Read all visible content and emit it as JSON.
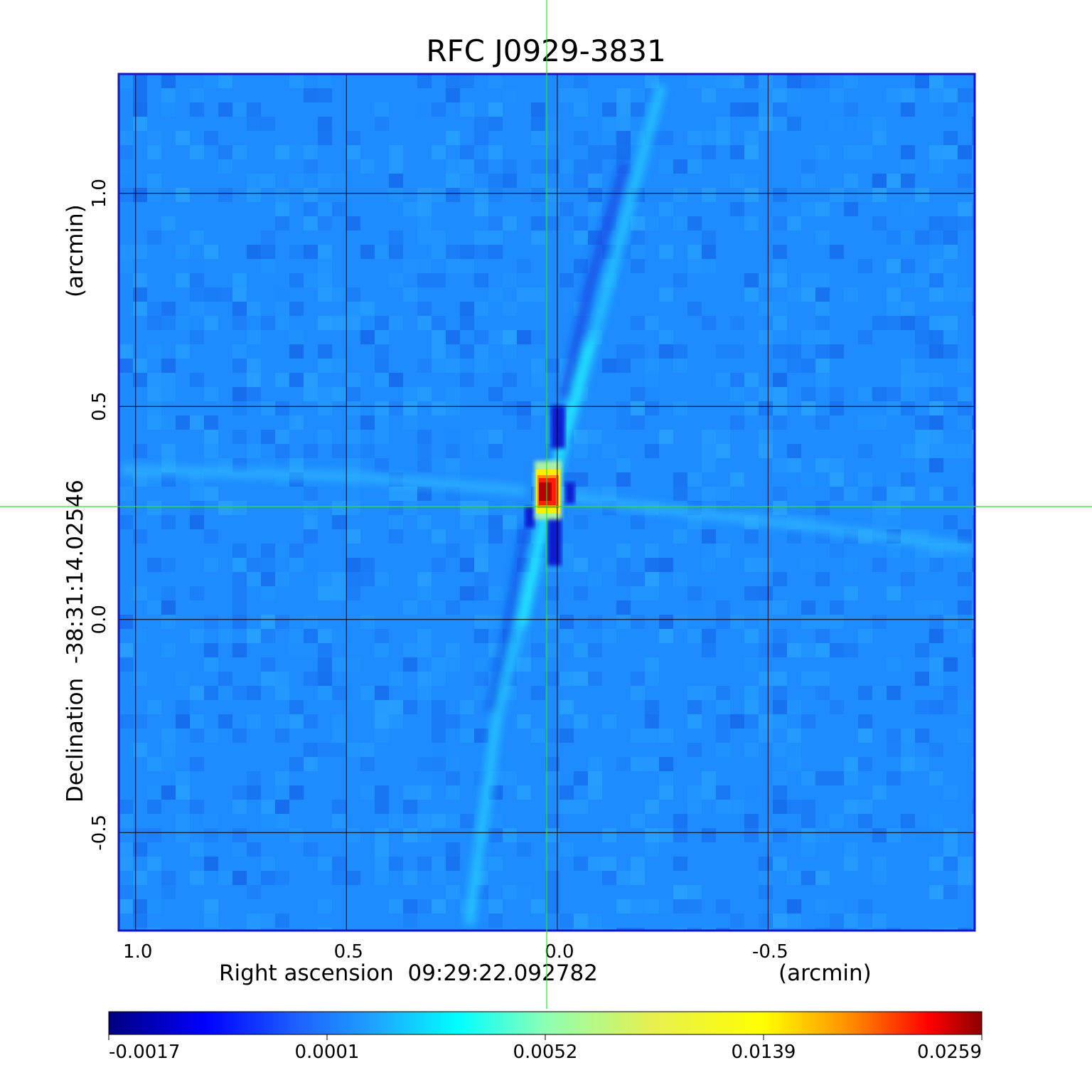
{
  "chart_data": {
    "type": "heatmap",
    "title": "RFC J0929-3831",
    "xlabel": "Right ascension  09:29:22.092782",
    "xunit": "(arcmin)",
    "ylabel": "Declination  -38:31:14.02546",
    "yunit": "(arcmin)",
    "x_ticks": [
      "1.0",
      "0.5",
      "0.0",
      "-0.5"
    ],
    "y_ticks": [
      "1.0",
      "0.5",
      "0.0",
      "-0.5"
    ],
    "xlim": [
      1.04,
      -0.99
    ],
    "ylim": [
      -0.73,
      1.28
    ],
    "grid": true,
    "crosshair": {
      "x": 0.025,
      "y": 0.265
    },
    "peak": {
      "x": 0.02,
      "y": 0.3
    },
    "colorbar": {
      "colormap": "jet",
      "tick_labels": [
        "-0.0017",
        "0.0001",
        "0.0052",
        "0.0139",
        "0.0259"
      ]
    },
    "colors": {
      "title": "#1010e0",
      "frame": "#1414c8",
      "background_field": "#1e8cff",
      "crosshair": "#33dd33",
      "grid": "#000000"
    }
  }
}
